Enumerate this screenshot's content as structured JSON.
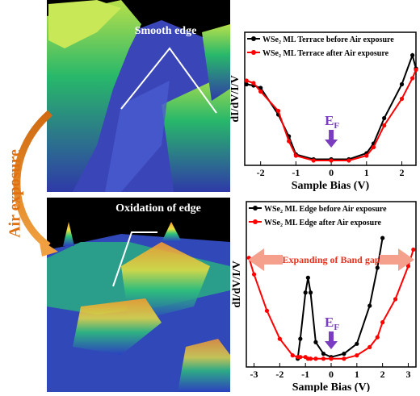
{
  "image_labels": {
    "top": "Smooth edge",
    "bottom": "Oxidation of edge",
    "side": "Air exposure"
  },
  "chart_data": [
    {
      "type": "line",
      "xlabel": "Sample Bias (V)",
      "ylabel": "dI/dV/I/V",
      "xlim": [
        -2.45,
        2.4
      ],
      "xticks": [
        -2,
        -1,
        0,
        1,
        2
      ],
      "ylim": [
        0,
        1.1
      ],
      "fermi_label": {
        "text": "E",
        "subscript": "F"
      },
      "x": [
        -2.4,
        -2.2,
        -2,
        -1.5,
        -1.2,
        -1,
        -0.5,
        0,
        0.5,
        1,
        1.2,
        1.5,
        2,
        2.3,
        2.4
      ],
      "series": [
        {
          "name": "WSe₂ ML Terrace before Air exposure",
          "color": "#000000",
          "values": [
            0.67,
            0.66,
            0.64,
            0.42,
            0.24,
            0.09,
            0.05,
            0.05,
            0.05,
            0.1,
            0.18,
            0.39,
            0.67,
            0.91,
            0.8
          ]
        },
        {
          "name": "WSe₂ ML Terrace after Air exposure",
          "color": "#ff0000",
          "values": [
            0.7,
            0.68,
            0.61,
            0.45,
            0.2,
            0.08,
            0.04,
            0.04,
            0.04,
            0.08,
            0.15,
            0.33,
            0.55,
            0.72,
            0.79
          ]
        }
      ]
    },
    {
      "type": "line",
      "xlabel": "Sample Bias (V)",
      "ylabel": "dI/dV/I/V",
      "xlim": [
        -3.3,
        3.3
      ],
      "xticks": [
        -3,
        -2,
        -1,
        0,
        1,
        2,
        3
      ],
      "ylim": [
        0,
        1
      ],
      "fermi_label": {
        "text": "E",
        "subscript": "F"
      },
      "annotation": "Expanding of  Band gap",
      "x": [
        -3.2,
        -3,
        -2.5,
        -2,
        -1.5,
        -1.3,
        -1.2,
        -1,
        -0.9,
        -0.8,
        -0.6,
        -0.3,
        0,
        0.5,
        1,
        1.5,
        1.8,
        2,
        2.5,
        3,
        3.2
      ],
      "series": [
        {
          "name": "WSe₂ ML Edge before Air exposure",
          "color": "#000000",
          "values": [
            null,
            null,
            null,
            null,
            null,
            0.05,
            0.17,
            0.45,
            0.54,
            0.45,
            0.15,
            0.08,
            0.06,
            0.08,
            0.14,
            0.37,
            0.6,
            0.78,
            null,
            null,
            null
          ]
        },
        {
          "name": "WSe₂ ML Edge after Air exposure",
          "color": "#ff0000",
          "values": [
            0.66,
            0.56,
            0.34,
            0.17,
            0.07,
            0.06,
            0.06,
            0.06,
            0.05,
            0.05,
            0.05,
            0.05,
            0.05,
            0.05,
            0.07,
            0.12,
            0.18,
            0.27,
            0.41,
            0.61,
            0.71
          ]
        }
      ]
    }
  ]
}
